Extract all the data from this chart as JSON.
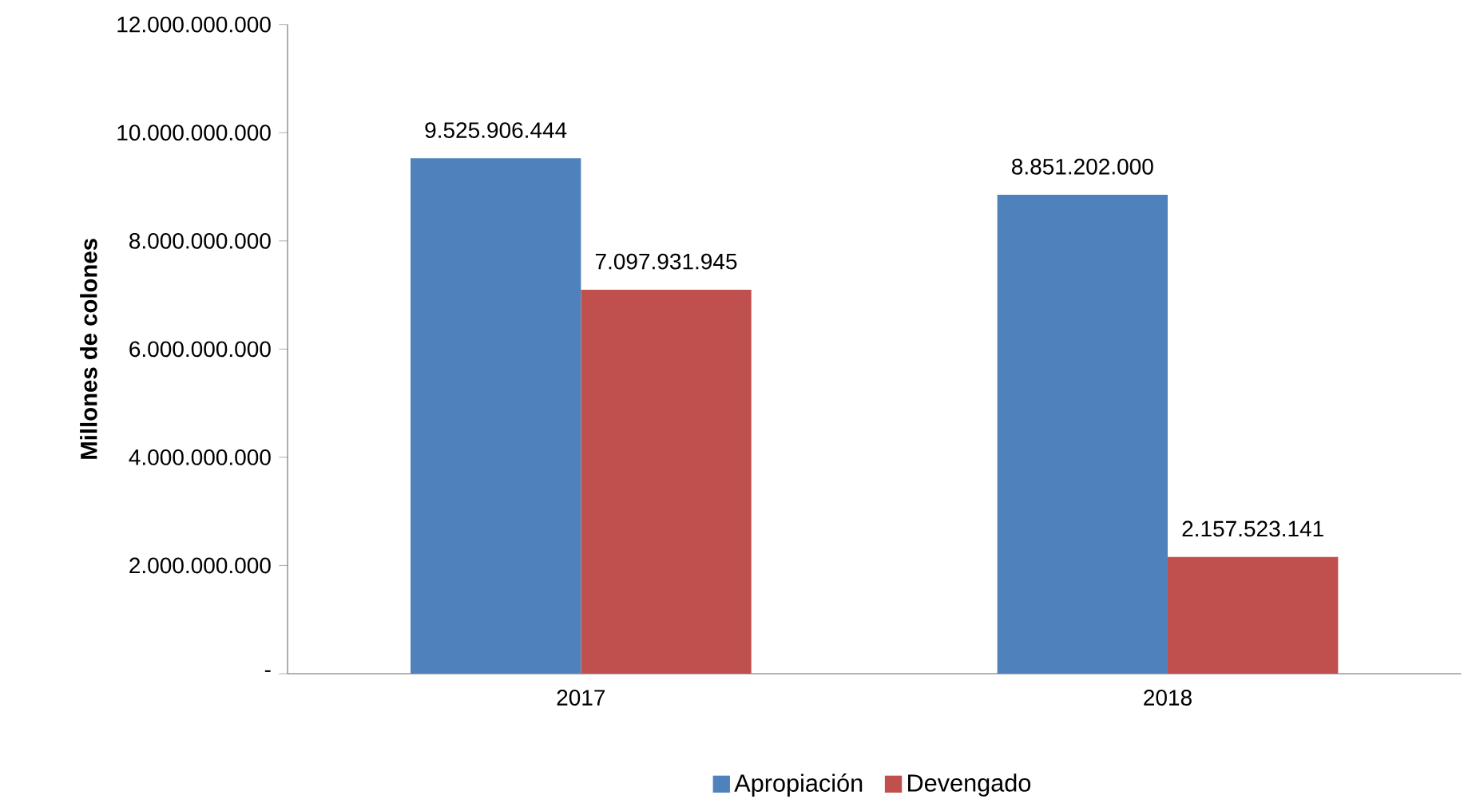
{
  "chart_data": {
    "type": "bar",
    "ylabel": "Millones de colones",
    "categories": [
      "2017",
      "2018"
    ],
    "series": [
      {
        "name": "Apropiación",
        "color": "#4f81bd",
        "values": [
          9525906444,
          8851202000
        ],
        "value_labels": [
          "9.525.906.444",
          "8.851.202.000"
        ]
      },
      {
        "name": "Devengado",
        "color": "#c0504d",
        "values": [
          7097931945,
          2157523141
        ],
        "value_labels": [
          "7.097.931.945",
          "2.157.523.141"
        ]
      }
    ],
    "ylim": [
      0,
      12000000000
    ],
    "yticks": [
      {
        "value": 0,
        "label": "-"
      },
      {
        "value": 2000000000,
        "label": "2.000.000.000"
      },
      {
        "value": 4000000000,
        "label": "4.000.000.000"
      },
      {
        "value": 6000000000,
        "label": "6.000.000.000"
      },
      {
        "value": 8000000000,
        "label": "8.000.000.000"
      },
      {
        "value": 10000000000,
        "label": "10.000.000.000"
      },
      {
        "value": 12000000000,
        "label": "12.000.000.000"
      }
    ],
    "grid": false,
    "legend": "bottom"
  }
}
